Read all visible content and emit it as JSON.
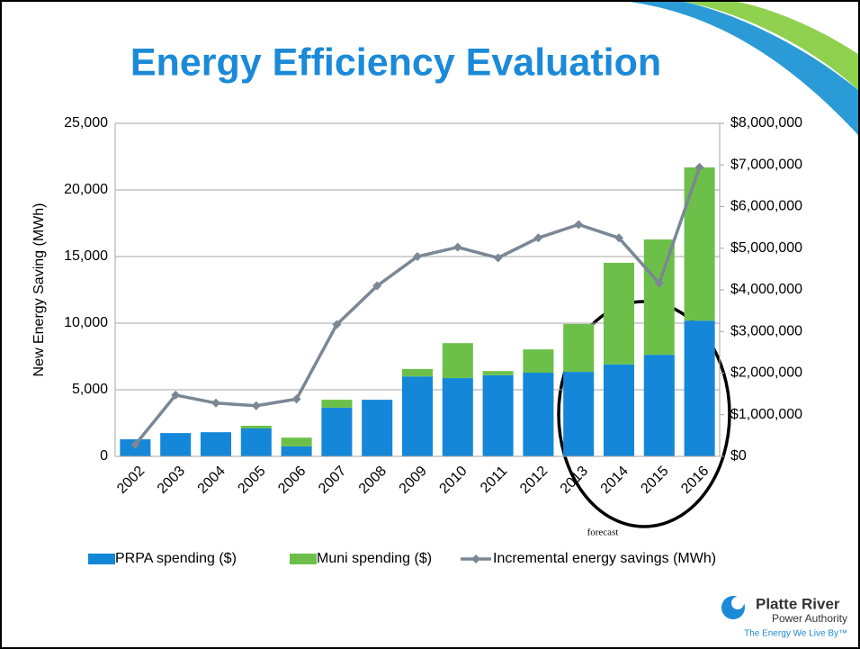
{
  "chart_data": {
    "type": "bar_line",
    "title": "Energy Efficiency Evaluation",
    "y_label": "New Energy Saving (MWh)",
    "annotation": "forecast",
    "categories": [
      "2002",
      "2003",
      "2004",
      "2005",
      "2006",
      "2007",
      "2008",
      "2009",
      "2010",
      "2011",
      "2012",
      "2013",
      "2014",
      "2015",
      "2016"
    ],
    "series": [
      {
        "name": "PRPA spending ($)",
        "color": "#1487d9",
        "axis": "y2",
        "stacked": true,
        "values": [
          410000,
          560000,
          580000,
          670000,
          240000,
          1170000,
          1360000,
          1920000,
          1880000,
          1950000,
          2010000,
          2030000,
          2210000,
          2440000,
          3260000
        ]
      },
      {
        "name": "Muni spending ($)",
        "color": "#6cc04a",
        "axis": "y2",
        "stacked": true,
        "values": [
          0,
          0,
          0,
          65000,
          210000,
          190000,
          0,
          180000,
          840000,
          100000,
          560000,
          1150000,
          2440000,
          2770000,
          3680000
        ]
      },
      {
        "name": "Incremental energy savings (MWh)",
        "color": "#7b8794",
        "type": "line",
        "values": [
          880,
          4600,
          4000,
          3800,
          4300,
          9900,
          12800,
          15000,
          15700,
          14900,
          16400,
          17400,
          16400,
          13000,
          21700
        ]
      }
    ],
    "ylim": [
      0,
      25000
    ],
    "yticks": [
      0,
      {
        "value": 5000,
        "label": "5,000"
      },
      {
        "value": 10000,
        "label": "10,000"
      },
      {
        "value": 15000,
        "label": "15,000"
      },
      {
        "value": 20000,
        "label": "20,000"
      },
      {
        "value": 25000,
        "label": "25,000"
      }
    ],
    "y2lim": [
      0,
      8000000
    ],
    "y2ticks": [
      {
        "value": 0,
        "label": "$0"
      },
      {
        "value": 1000000,
        "label": "$1,000,000"
      },
      {
        "value": 2000000,
        "label": "$2,000,000"
      },
      {
        "value": 3000000,
        "label": "$3,000,000"
      },
      {
        "value": 4000000,
        "label": "$4,000,000"
      },
      {
        "value": 5000000,
        "label": "$5,000,000"
      },
      {
        "value": 6000000,
        "label": "$6,000,000"
      },
      {
        "value": 7000000,
        "label": "$7,000,000"
      },
      {
        "value": 8000000,
        "label": "$8,000,000"
      }
    ],
    "grid": true,
    "legend": "bottom"
  },
  "logo": {
    "name": "Platte River",
    "subtitle": "Power Authority",
    "tagline": "The Energy We Live By™"
  }
}
